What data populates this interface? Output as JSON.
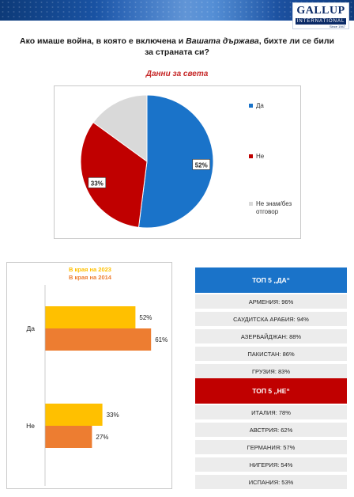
{
  "header": {
    "logo_main": "GALLUP",
    "logo_sub": "INTERNATIONAL",
    "logo_since": "Since 1947"
  },
  "question": {
    "part1": "Ако имаше война, в която е включена и ",
    "emphasis": "Вашата държава",
    "part2": ", бихте ли се били за страната си?"
  },
  "colors": {
    "yes_blue": "#1a73c9",
    "no_red": "#c00000",
    "dk_grey": "#d9d9d9",
    "bar_2023": "#ffc000",
    "bar_2014": "#ed7d31",
    "title_red": "#c62828"
  },
  "chart_data": [
    {
      "type": "pie",
      "title": "Данни за света",
      "slices": [
        {
          "label": "Да",
          "value": 52,
          "data_label": "52%"
        },
        {
          "label": "Не",
          "value": 33,
          "data_label": "33%"
        },
        {
          "label": "Не знам/без отговор",
          "value": 15,
          "data_label": ""
        }
      ],
      "legend_position": "right"
    },
    {
      "type": "bar",
      "orientation": "horizontal",
      "categories": [
        "Да",
        "Не"
      ],
      "series": [
        {
          "name": "В края на 2023",
          "values": [
            52,
            33
          ],
          "data_labels": [
            "52%",
            "33%"
          ]
        },
        {
          "name": "В края на 2014",
          "values": [
            61,
            27
          ],
          "data_labels": [
            "61%",
            "27%"
          ]
        }
      ],
      "xlim": [
        0,
        100
      ],
      "legend_position": "top",
      "grid": false
    }
  ],
  "top_yes": {
    "title": "ТОП 5 „ДА“",
    "items": [
      "АРМЕНИЯ: 96%",
      "САУДИТСКА АРАБИЯ: 94%",
      "АЗЕРБАЙДЖАН: 88%",
      "ПАКИСТАН: 86%",
      "ГРУЗИЯ: 83%"
    ]
  },
  "top_no": {
    "title": "ТОП 5 „НЕ“",
    "items": [
      "ИТАЛИЯ: 78%",
      "АВСТРИЯ: 62%",
      "ГЕРМАНИЯ: 57%",
      "НИГЕРИЯ: 54%",
      "ИСПАНИЯ: 53%"
    ]
  }
}
